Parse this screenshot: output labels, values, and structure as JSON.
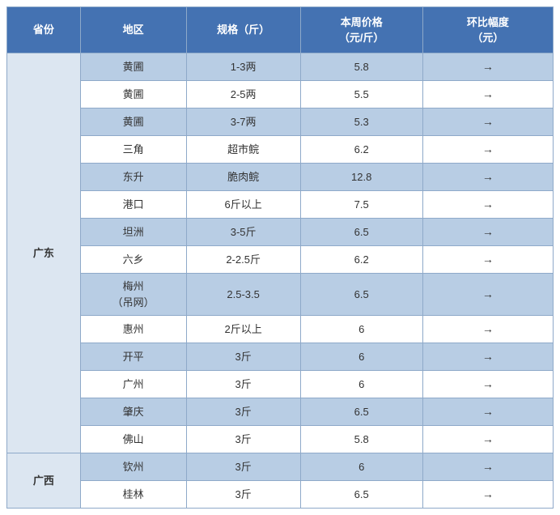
{
  "columns": {
    "province": "省份",
    "region": "地区",
    "spec": "规格（斤）",
    "price": "本周价格<br>（元/斤）",
    "change": "环比幅度<br>（元）"
  },
  "provinces": [
    {
      "name": "广东",
      "rows": [
        {
          "region": "黄圃",
          "spec": "1-3两",
          "price": "5.8",
          "change": "→"
        },
        {
          "region": "黄圃",
          "spec": "2-5两",
          "price": "5.5",
          "change": "→"
        },
        {
          "region": "黄圃",
          "spec": "3-7两",
          "price": "5.3",
          "change": "→"
        },
        {
          "region": "三角",
          "spec": "超市鲩",
          "price": "6.2",
          "change": "→"
        },
        {
          "region": "东升",
          "spec": "脆肉鲩",
          "price": "12.8",
          "change": "→"
        },
        {
          "region": "港口",
          "spec": "6斤以上",
          "price": "7.5",
          "change": "→"
        },
        {
          "region": "坦洲",
          "spec": "3-5斤",
          "price": "6.5",
          "change": "→"
        },
        {
          "region": "六乡",
          "spec": "2-2.5斤",
          "price": "6.2",
          "change": "→"
        },
        {
          "region": "梅州<br>（吊网）",
          "spec": "2.5-3.5",
          "price": "6.5",
          "change": "→"
        },
        {
          "region": "惠州",
          "spec": "2斤以上",
          "price": "6",
          "change": "→"
        },
        {
          "region": "开平",
          "spec": "3斤",
          "price": "6",
          "change": "→"
        },
        {
          "region": "广州",
          "spec": "3斤",
          "price": "6",
          "change": "→"
        },
        {
          "region": "肇庆",
          "spec": "3斤",
          "price": "6.5",
          "change": "→"
        },
        {
          "region": "佛山",
          "spec": "3斤",
          "price": "5.8",
          "change": "→"
        }
      ]
    },
    {
      "name": "广西",
      "rows": [
        {
          "region": "钦州",
          "spec": "3斤",
          "price": "6",
          "change": "→"
        },
        {
          "region": "桂林",
          "spec": "3斤",
          "price": "6.5",
          "change": "→"
        }
      ]
    }
  ],
  "style": {
    "header_bg": "#4472b2",
    "header_color": "#ffffff",
    "band_a_bg": "#b8cde4",
    "band_b_bg": "#ffffff",
    "prov_cell_bg": "#dce6f1",
    "border_color": "#8ea9c9",
    "font_size": 13,
    "arrow_color": "#333333"
  }
}
